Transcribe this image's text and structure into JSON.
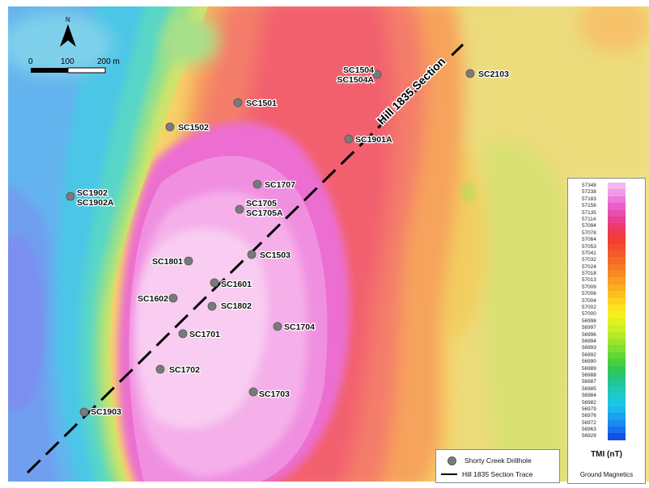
{
  "map": {
    "north_label": "N",
    "scale_bar": {
      "labels": [
        "0",
        "100",
        "200 m"
      ]
    },
    "section_label": "Hill 1835 Section",
    "drillholes": [
      {
        "id": "SC1504",
        "label": "SC1504\nSC1504A"
      },
      {
        "id": "SC2103",
        "label": "SC2103"
      },
      {
        "id": "SC1501",
        "label": "SC1501"
      },
      {
        "id": "SC1502",
        "label": "SC1502"
      },
      {
        "id": "SC1901A",
        "label": "SC1901A"
      },
      {
        "id": "SC1707",
        "label": "SC1707"
      },
      {
        "id": "SC1902",
        "label": "SC1902\nSC1902A"
      },
      {
        "id": "SC1705",
        "label": "SC1705\nSC1705A"
      },
      {
        "id": "SC1503",
        "label": "SC1503"
      },
      {
        "id": "SC1801",
        "label": "SC1801"
      },
      {
        "id": "SC1601",
        "label": "SC1601"
      },
      {
        "id": "SC1602",
        "label": "SC1602"
      },
      {
        "id": "SC1802",
        "label": "SC1802"
      },
      {
        "id": "SC1704",
        "label": "SC1704"
      },
      {
        "id": "SC1701",
        "label": "SC1701"
      },
      {
        "id": "SC1702",
        "label": "SC1702"
      },
      {
        "id": "SC1703",
        "label": "SC1703"
      },
      {
        "id": "SC1903",
        "label": "SC1903"
      }
    ],
    "colors": {
      "drillhole": "#7a7a7a",
      "section_line": "#000000"
    }
  },
  "legend": {
    "drillhole_label": "Shorty Creek Drillhole",
    "section_trace_label": "Hill 1835 Section Trace"
  },
  "color_scale": {
    "title": "TMI (nT)",
    "subtitle": "Ground Magnetics",
    "entries": [
      {
        "value": "57348",
        "color": "#f7b6ee"
      },
      {
        "value": "57238",
        "color": "#f39ae6"
      },
      {
        "value": "57183",
        "color": "#ee7ad9"
      },
      {
        "value": "57156",
        "color": "#ea5ec9"
      },
      {
        "value": "57135",
        "color": "#e64fb0"
      },
      {
        "value": "57114",
        "color": "#e8418f"
      },
      {
        "value": "57094",
        "color": "#ec3a6a"
      },
      {
        "value": "57078",
        "color": "#ef3a4a"
      },
      {
        "value": "57064",
        "color": "#f13f34"
      },
      {
        "value": "57053",
        "color": "#f34a2c"
      },
      {
        "value": "57041",
        "color": "#f45a2a"
      },
      {
        "value": "57032",
        "color": "#f56a28"
      },
      {
        "value": "57024",
        "color": "#f67a26"
      },
      {
        "value": "57018",
        "color": "#f88a24"
      },
      {
        "value": "57013",
        "color": "#f99c22"
      },
      {
        "value": "57009",
        "color": "#faae20"
      },
      {
        "value": "57006",
        "color": "#fbc01f"
      },
      {
        "value": "57004",
        "color": "#fcd21e"
      },
      {
        "value": "57002",
        "color": "#fde41e"
      },
      {
        "value": "57000",
        "color": "#f6ef1f"
      },
      {
        "value": "56998",
        "color": "#e3f021"
      },
      {
        "value": "56997",
        "color": "#cdee24"
      },
      {
        "value": "56996",
        "color": "#b5ea28"
      },
      {
        "value": "56994",
        "color": "#9be52c"
      },
      {
        "value": "56993",
        "color": "#80df31"
      },
      {
        "value": "56992",
        "color": "#62d837"
      },
      {
        "value": "56990",
        "color": "#46d040"
      },
      {
        "value": "56989",
        "color": "#31c955"
      },
      {
        "value": "56988",
        "color": "#27c574"
      },
      {
        "value": "56987",
        "color": "#22c595"
      },
      {
        "value": "56985",
        "color": "#20c7b5"
      },
      {
        "value": "56984",
        "color": "#1ec8cf"
      },
      {
        "value": "56982",
        "color": "#1dc6e4"
      },
      {
        "value": "56979",
        "color": "#1bb8ee"
      },
      {
        "value": "56976",
        "color": "#1aa2f0"
      },
      {
        "value": "56972",
        "color": "#198af0"
      },
      {
        "value": "56963",
        "color": "#1870ee"
      },
      {
        "value": "56929",
        "color": "#1450e8"
      }
    ]
  }
}
